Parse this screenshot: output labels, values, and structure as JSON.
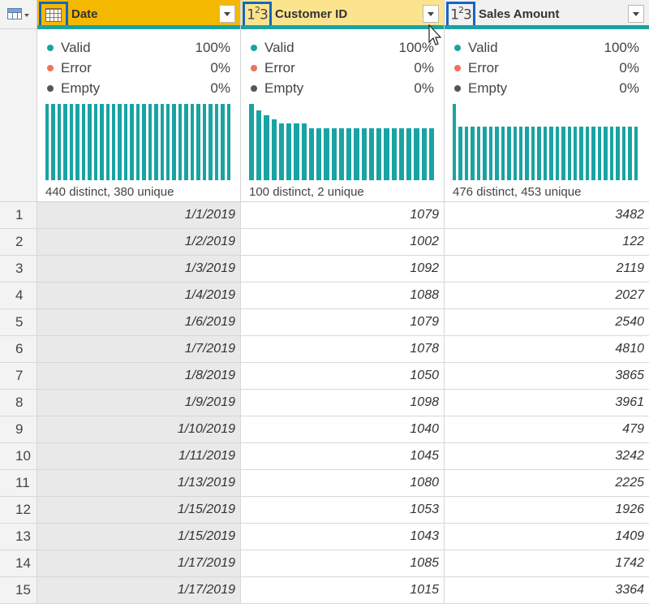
{
  "columns": [
    {
      "name": "Date",
      "type_icon": "calendar-icon",
      "type_label": "",
      "header_color": "#f5b800"
    },
    {
      "name": "Customer ID",
      "type_icon": "whole-number-icon",
      "type_label": "123",
      "header_color": "#fce48e"
    },
    {
      "name": "Sales Amount",
      "type_icon": "whole-number-icon",
      "type_label": "123",
      "header_color": "#f1f1f1"
    }
  ],
  "profile": [
    {
      "valid_label": "Valid",
      "valid_pct": "100%",
      "error_label": "Error",
      "error_pct": "0%",
      "empty_label": "Empty",
      "empty_pct": "0%",
      "distinct": "440 distinct, 380 unique",
      "histogram": [
        1,
        1,
        1,
        1,
        1,
        1,
        1,
        1,
        1,
        1,
        1,
        1,
        1,
        1,
        1,
        1,
        1,
        1,
        1,
        1,
        1,
        1,
        1,
        1,
        1,
        1,
        1,
        1,
        1,
        1,
        1
      ]
    },
    {
      "valid_label": "Valid",
      "valid_pct": "100%",
      "error_label": "Error",
      "error_pct": "0%",
      "empty_label": "Empty",
      "empty_pct": "0%",
      "distinct": "100 distinct, 2 unique",
      "histogram": [
        1,
        0.92,
        0.85,
        0.8,
        0.75,
        0.75,
        0.75,
        0.75,
        0.68,
        0.68,
        0.68,
        0.68,
        0.68,
        0.68,
        0.68,
        0.68,
        0.68,
        0.68,
        0.68,
        0.68,
        0.68,
        0.68,
        0.68,
        0.68,
        0.68
      ]
    },
    {
      "valid_label": "Valid",
      "valid_pct": "100%",
      "error_label": "Error",
      "error_pct": "0%",
      "empty_label": "Empty",
      "empty_pct": "0%",
      "distinct": "476 distinct, 453 unique",
      "histogram": [
        1,
        0.7,
        0.7,
        0.7,
        0.7,
        0.7,
        0.7,
        0.7,
        0.7,
        0.7,
        0.7,
        0.7,
        0.7,
        0.7,
        0.7,
        0.7,
        0.7,
        0.7,
        0.7,
        0.7,
        0.7,
        0.7,
        0.7,
        0.7,
        0.7,
        0.7,
        0.7,
        0.7,
        0.7,
        0.7,
        0.7
      ]
    }
  ],
  "rows": [
    {
      "n": "1",
      "date": "1/1/2019",
      "customer": "1079",
      "sales": "3482"
    },
    {
      "n": "2",
      "date": "1/2/2019",
      "customer": "1002",
      "sales": "122"
    },
    {
      "n": "3",
      "date": "1/3/2019",
      "customer": "1092",
      "sales": "2119"
    },
    {
      "n": "4",
      "date": "1/4/2019",
      "customer": "1088",
      "sales": "2027"
    },
    {
      "n": "5",
      "date": "1/6/2019",
      "customer": "1079",
      "sales": "2540"
    },
    {
      "n": "6",
      "date": "1/7/2019",
      "customer": "1078",
      "sales": "4810"
    },
    {
      "n": "7",
      "date": "1/8/2019",
      "customer": "1050",
      "sales": "3865"
    },
    {
      "n": "8",
      "date": "1/9/2019",
      "customer": "1098",
      "sales": "3961"
    },
    {
      "n": "9",
      "date": "1/10/2019",
      "customer": "1040",
      "sales": "479"
    },
    {
      "n": "10",
      "date": "1/11/2019",
      "customer": "1045",
      "sales": "3242"
    },
    {
      "n": "11",
      "date": "1/13/2019",
      "customer": "1080",
      "sales": "2225"
    },
    {
      "n": "12",
      "date": "1/15/2019",
      "customer": "1053",
      "sales": "1926"
    },
    {
      "n": "13",
      "date": "1/15/2019",
      "customer": "1043",
      "sales": "1409"
    },
    {
      "n": "14",
      "date": "1/17/2019",
      "customer": "1085",
      "sales": "1742"
    },
    {
      "n": "15",
      "date": "1/17/2019",
      "customer": "1015",
      "sales": "3364"
    }
  ],
  "colors": {
    "teal": "#1aa3a3",
    "error": "#f07060",
    "empty": "#555555",
    "selection": "#1565c0"
  }
}
